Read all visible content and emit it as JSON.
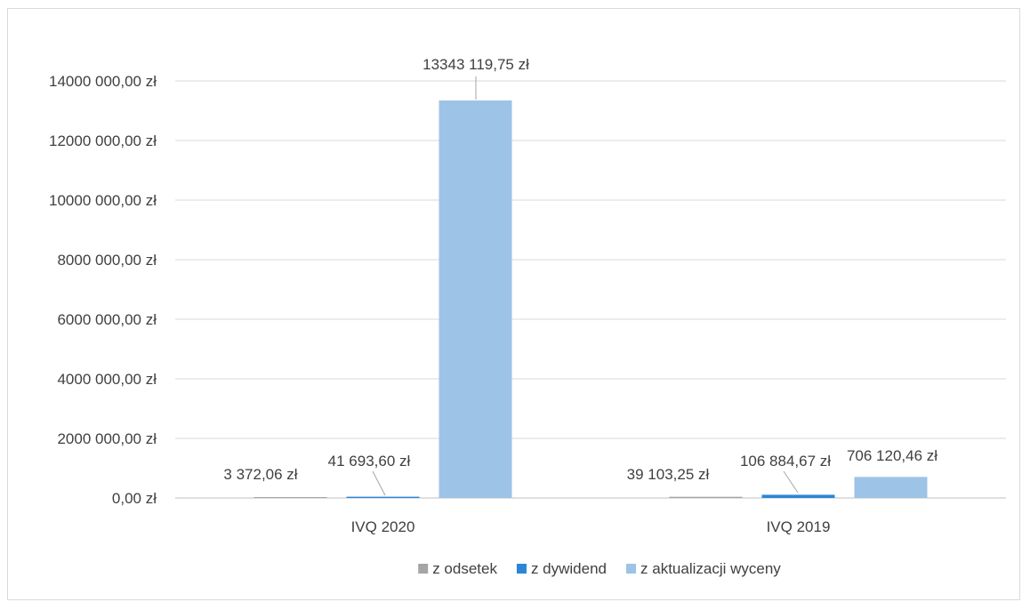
{
  "chart_data": {
    "type": "bar",
    "categories": [
      "IVQ 2020",
      "IVQ 2019"
    ],
    "series": [
      {
        "name": "z odsetek",
        "color": "#a5a5a5",
        "values": [
          3372.06,
          39103.25
        ],
        "labels": [
          "3 372,06 zł",
          "39 103,25 zł"
        ]
      },
      {
        "name": "z dywidend",
        "color": "#2b86d6",
        "values": [
          41693.6,
          106884.67
        ],
        "labels": [
          "41 693,60 zł",
          "106 884,67 zł"
        ]
      },
      {
        "name": "z aktualizacji wyceny",
        "color": "#9dc3e6",
        "values": [
          13343119.75,
          706120.46
        ],
        "labels": [
          "13343 119,75 zł",
          "706 120,46 zł"
        ]
      }
    ],
    "yticks": [
      "0,00 zł",
      "2000 000,00 zł",
      "4000 000,00 zł",
      "6000 000,00 zł",
      "8000 000,00 zł",
      "10000 000,00 zł",
      "12000 000,00 zł",
      "14000 000,00 zł"
    ],
    "ylim": [
      0,
      14000000
    ],
    "grid": true,
    "legend_position": "bottom"
  }
}
